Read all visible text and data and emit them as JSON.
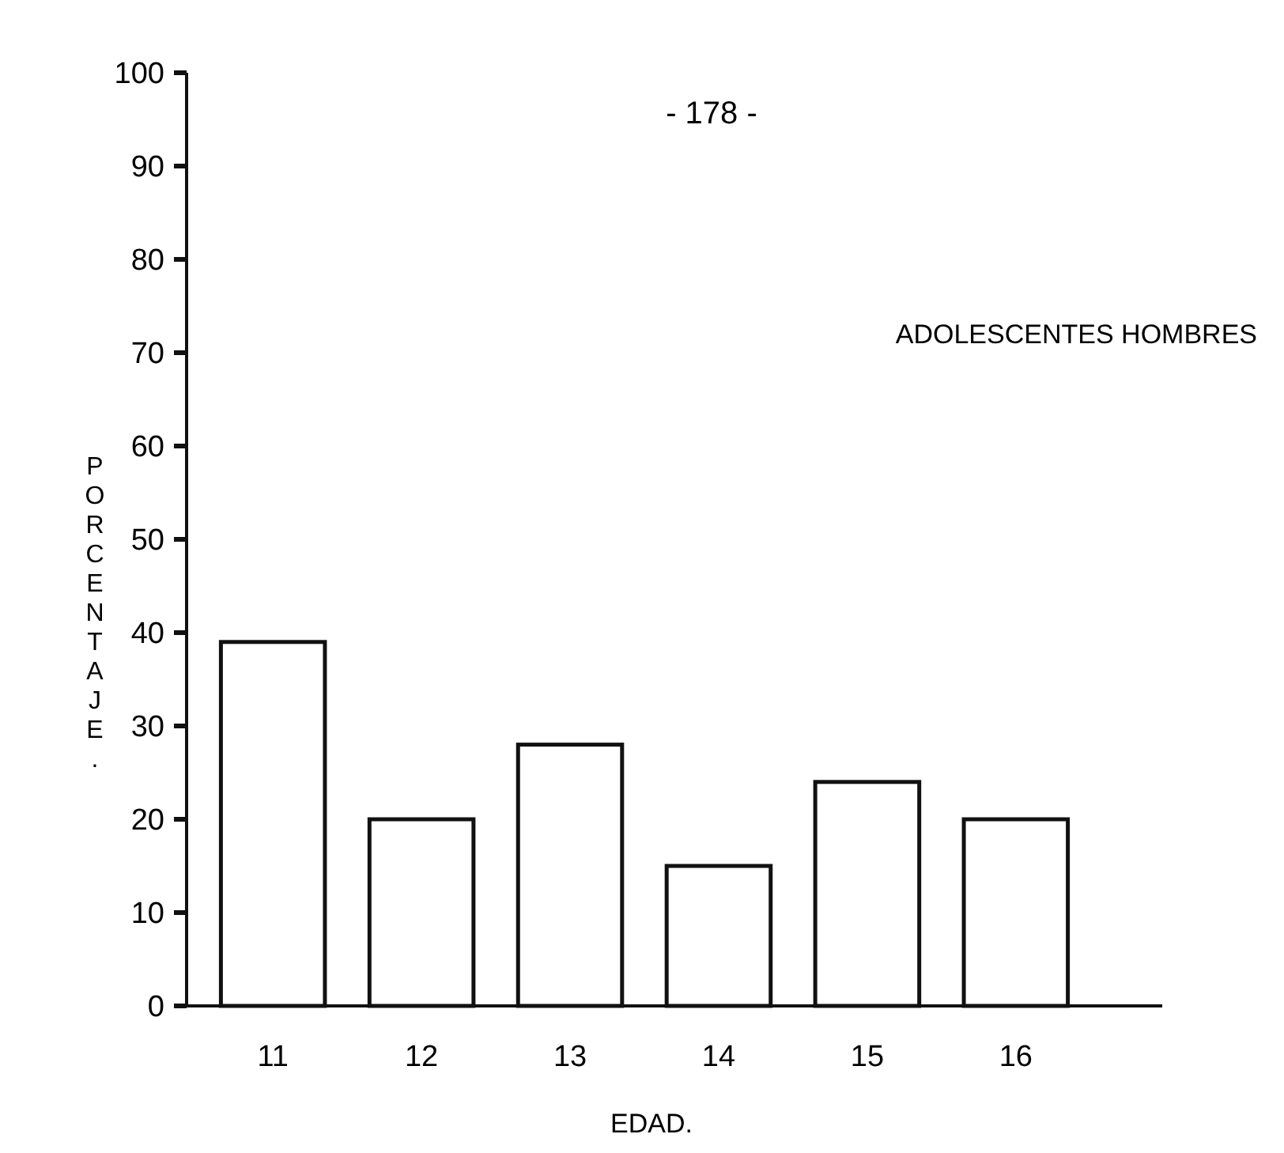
{
  "chart_data": {
    "type": "bar",
    "title": "ADOLESCENTES HOMBRES",
    "xlabel": "EDAD.",
    "ylabel": "PORCENTAJE.",
    "annotations": [
      "- 178 -"
    ],
    "categories": [
      "11",
      "12",
      "13",
      "14",
      "15",
      "16"
    ],
    "values": [
      39,
      20,
      28,
      15,
      24,
      20
    ],
    "color": "#ffffff",
    "ylim": [
      0,
      100
    ],
    "yticks": [
      0,
      10,
      20,
      30,
      40,
      50,
      60,
      70,
      80,
      90,
      100
    ],
    "grid": false
  }
}
